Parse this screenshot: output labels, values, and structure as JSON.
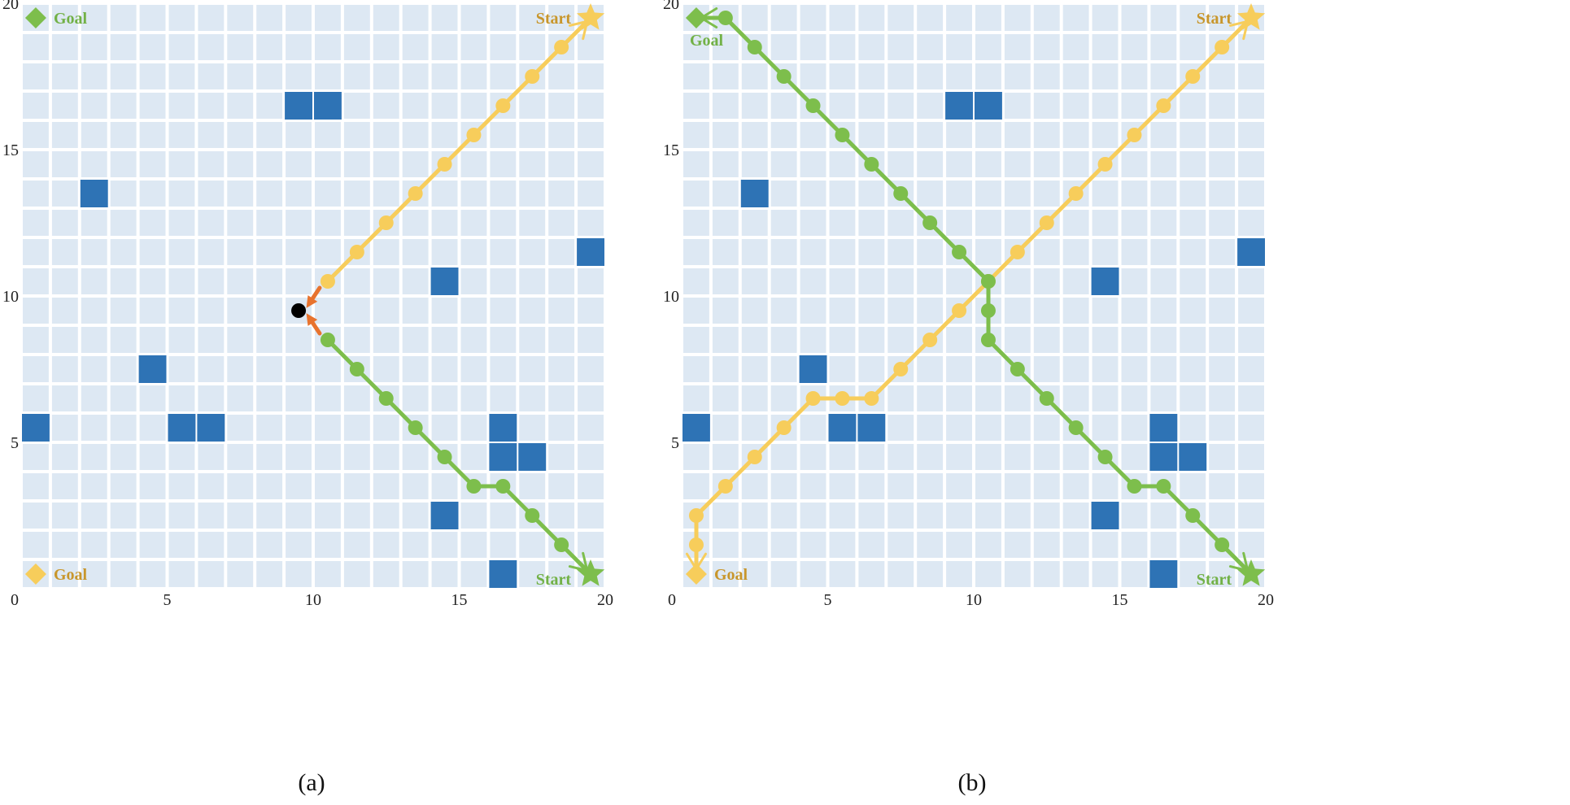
{
  "colors": {
    "cell": "#dde8f3",
    "grid_line": "#ffffff",
    "obstacle": "#2e73b5",
    "yellow": "#f7cd5b",
    "yellow_text": "#c8962b",
    "green": "#7dbe4c",
    "green_text": "#72b146",
    "arrow": "#e8732e",
    "collision": "#000000"
  },
  "axis": {
    "x_ticks": [
      "0",
      "5",
      "10",
      "15",
      "20"
    ],
    "y_ticks": [
      "0",
      "5",
      "10",
      "15",
      "20"
    ]
  },
  "obstacles": [
    [
      9.5,
      16.5
    ],
    [
      10.5,
      16.5
    ],
    [
      2.5,
      13.5
    ],
    [
      19.5,
      11.5
    ],
    [
      14.5,
      10.5
    ],
    [
      4.5,
      7.5
    ],
    [
      0.5,
      5.5
    ],
    [
      5.5,
      5.5
    ],
    [
      6.5,
      5.5
    ],
    [
      16.5,
      5.5
    ],
    [
      16.5,
      4.5
    ],
    [
      17.5,
      4.5
    ],
    [
      14.5,
      2.5
    ],
    [
      16.5,
      0.5
    ]
  ],
  "panels": [
    {
      "caption": "(a)",
      "yellow_path": [
        [
          19.5,
          19.5
        ],
        [
          18.5,
          18.5
        ],
        [
          17.5,
          17.5
        ],
        [
          16.5,
          16.5
        ],
        [
          15.5,
          15.5
        ],
        [
          14.5,
          14.5
        ],
        [
          13.5,
          13.5
        ],
        [
          12.5,
          12.5
        ],
        [
          11.5,
          11.5
        ],
        [
          10.5,
          10.5
        ]
      ],
      "green_path": [
        [
          19.5,
          0.5
        ],
        [
          18.5,
          1.5
        ],
        [
          17.5,
          2.5
        ],
        [
          16.5,
          3.5
        ],
        [
          15.5,
          3.5
        ],
        [
          14.5,
          4.5
        ],
        [
          13.5,
          5.5
        ],
        [
          12.5,
          6.5
        ],
        [
          11.5,
          7.5
        ],
        [
          10.5,
          8.5
        ]
      ],
      "collision_point": [
        9.5,
        9.5
      ],
      "yellow_start_label": "Start",
      "yellow_goal_label": "Goal",
      "green_start_label": "Start",
      "green_goal_label": "Goal"
    },
    {
      "caption": "(b)",
      "yellow_path": [
        [
          19.5,
          19.5
        ],
        [
          18.5,
          18.5
        ],
        [
          17.5,
          17.5
        ],
        [
          16.5,
          16.5
        ],
        [
          15.5,
          15.5
        ],
        [
          14.5,
          14.5
        ],
        [
          13.5,
          13.5
        ],
        [
          12.5,
          12.5
        ],
        [
          11.5,
          11.5
        ],
        [
          10.5,
          10.5
        ],
        [
          9.5,
          9.5
        ],
        [
          8.5,
          8.5
        ],
        [
          7.5,
          7.5
        ],
        [
          6.5,
          6.5
        ],
        [
          5.5,
          6.5
        ],
        [
          4.5,
          6.5
        ],
        [
          3.5,
          5.5
        ],
        [
          2.5,
          4.5
        ],
        [
          1.5,
          3.5
        ],
        [
          0.5,
          2.5
        ],
        [
          0.5,
          1.5
        ],
        [
          0.5,
          0.5
        ]
      ],
      "green_path": [
        [
          19.5,
          0.5
        ],
        [
          18.5,
          1.5
        ],
        [
          17.5,
          2.5
        ],
        [
          16.5,
          3.5
        ],
        [
          15.5,
          3.5
        ],
        [
          14.5,
          4.5
        ],
        [
          13.5,
          5.5
        ],
        [
          12.5,
          6.5
        ],
        [
          11.5,
          7.5
        ],
        [
          10.5,
          8.5
        ],
        [
          10.5,
          9.5
        ],
        [
          10.5,
          10.5
        ],
        [
          9.5,
          11.5
        ],
        [
          8.5,
          12.5
        ],
        [
          7.5,
          13.5
        ],
        [
          6.5,
          14.5
        ],
        [
          5.5,
          15.5
        ],
        [
          4.5,
          16.5
        ],
        [
          3.5,
          17.5
        ],
        [
          2.5,
          18.5
        ],
        [
          1.5,
          19.5
        ],
        [
          0.5,
          19.5
        ]
      ],
      "yellow_start_label": "Start",
      "yellow_goal_label": "Goal",
      "green_start_label": "Start",
      "green_goal_label": "Goal"
    }
  ]
}
